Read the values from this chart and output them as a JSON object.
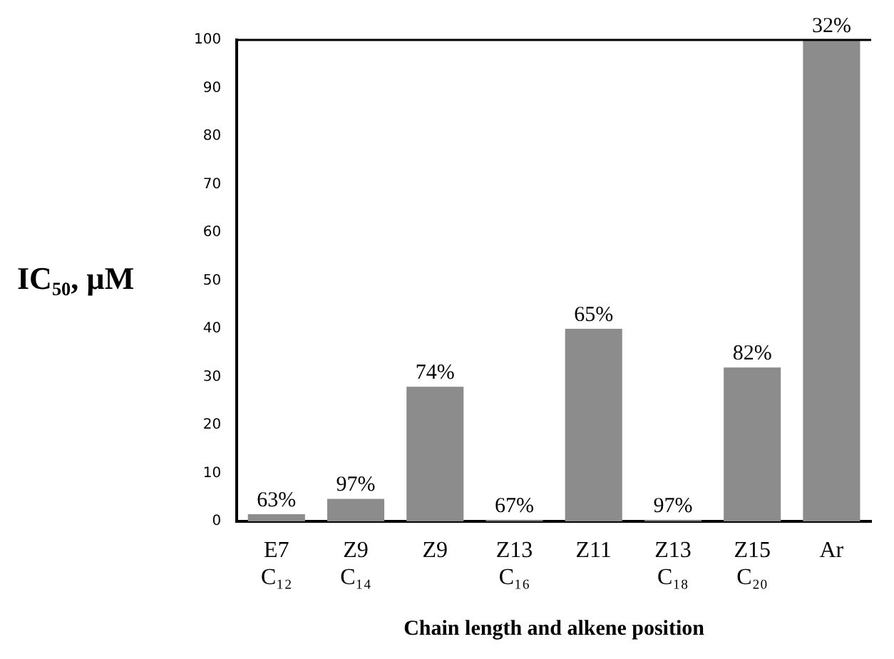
{
  "chart_data": {
    "type": "bar",
    "xlabel": "Chain length and alkene position",
    "ylabel": "IC₅₀, µM",
    "categories": [
      "E7\nC₁₂",
      "Z9\nC₁₄",
      "Z9",
      "Z13\nC₁₆",
      "Z11",
      "Z13\nC₁₈",
      "Z15\nC₂₀",
      "Ar"
    ],
    "values": [
      1.5,
      4.7,
      28,
      0.3,
      40,
      0.3,
      32,
      100
    ],
    "annotations": [
      {
        "text": "63%",
        "x": "E7\nC₁₂",
        "y": 1.5
      },
      {
        "text": "97%",
        "x": "Z9\nC₁₄",
        "y": 4.7
      },
      {
        "text": "74%",
        "x": "Z9",
        "y": 28
      },
      {
        "text": "67%",
        "x": "Z13\nC₁₆",
        "y": 0.3
      },
      {
        "text": "65%",
        "x": "Z11",
        "y": 40
      },
      {
        "text": "97%",
        "x": "Z13\nC₁₈",
        "y": 0.3
      },
      {
        "text": "82%",
        "x": "Z15\nC₂₀",
        "y": 32
      },
      {
        "text": "32%",
        "x": "Ar",
        "y": 100
      }
    ],
    "color": "#8c8c8c",
    "ylim": [
      0,
      100
    ],
    "yticks": [
      0,
      10,
      20,
      30,
      40,
      50,
      60,
      70,
      80,
      90,
      100
    ],
    "grid": false,
    "legend": false
  }
}
